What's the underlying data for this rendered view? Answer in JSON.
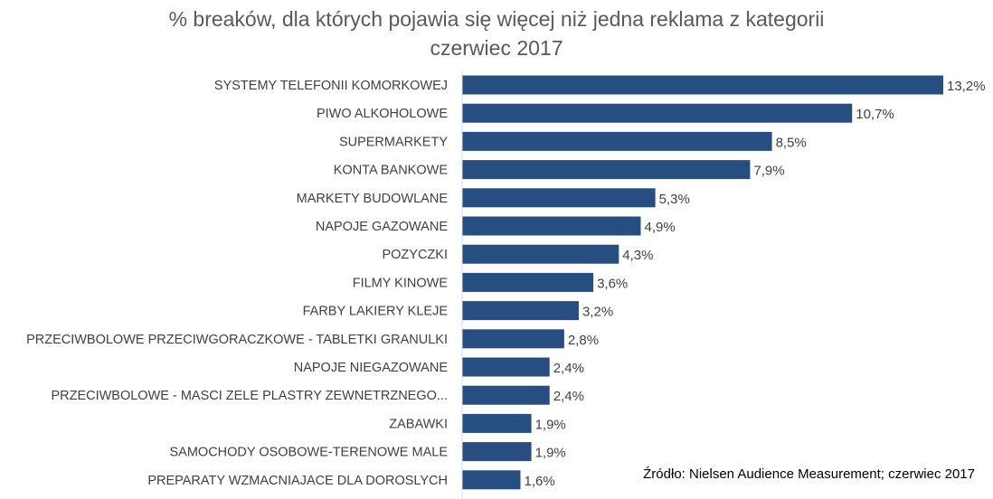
{
  "chart_data": {
    "type": "bar",
    "orientation": "horizontal",
    "title": "% breaków, dla których pojawia się więcej niż jedna reklama z kategorii",
    "subtitle": "czerwiec 2017",
    "categories": [
      "SYSTEMY TELEFONII KOMORKOWEJ",
      "PIWO ALKOHOLOWE",
      "SUPERMARKETY",
      "KONTA BANKOWE",
      "MARKETY BUDOWLANE",
      "NAPOJE GAZOWANE",
      "POZYCZKI",
      "FILMY KINOWE",
      "FARBY LAKIERY KLEJE",
      "PRZECIWBOLOWE PRZECIWGORACZKOWE - TABLETKI GRANULKI",
      "NAPOJE NIEGAZOWANE",
      "PRZECIWBOLOWE - MASCI ZELE PLASTRY ZEWNETRZNEGO...",
      "ZABAWKI",
      "SAMOCHODY OSOBOWE-TERENOWE MALE",
      "PREPARATY WZMACNIAJACE DLA DOROSLYCH"
    ],
    "values": [
      13.2,
      10.7,
      8.5,
      7.9,
      5.3,
      4.9,
      4.3,
      3.6,
      3.2,
      2.8,
      2.4,
      2.4,
      1.9,
      1.9,
      1.6
    ],
    "data_labels": [
      "13,2%",
      "10,7%",
      "8,5%",
      "7,9%",
      "5,3%",
      "4,9%",
      "4,3%",
      "3,6%",
      "3,2%",
      "2,8%",
      "2,4%",
      "2,4%",
      "1,9%",
      "1,9%",
      "1,6%"
    ],
    "xlim": [
      0,
      13.2
    ],
    "grid": false,
    "bar_color": "#264e80"
  },
  "source": "Źródło: Nielsen Audience Measurement; czerwiec 2017"
}
